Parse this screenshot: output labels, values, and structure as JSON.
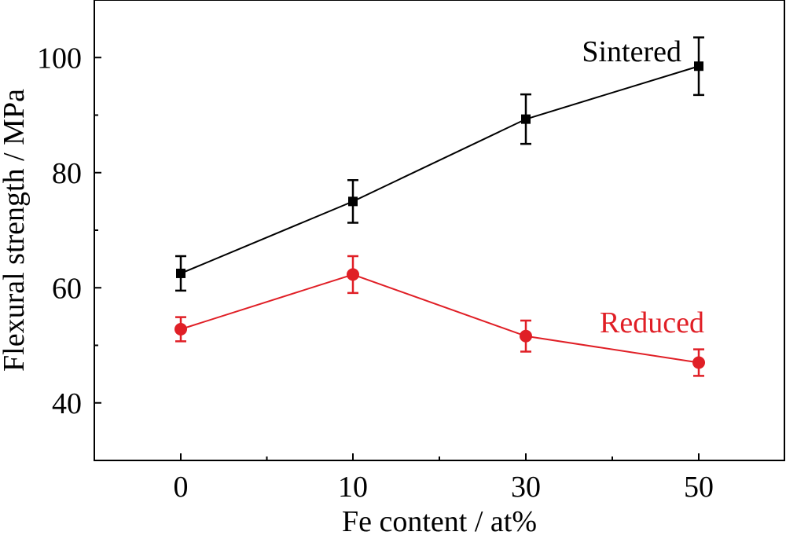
{
  "chart_data": {
    "type": "line",
    "title": "",
    "xlabel": "Fe content / at%",
    "ylabel": "Flexural strength / MPa",
    "categories": [
      "0",
      "10",
      "30",
      "50"
    ],
    "ylim": [
      30,
      110
    ],
    "yticks": [
      40,
      60,
      80,
      100
    ],
    "grid": false,
    "series": [
      {
        "name": "Sintered",
        "color": "#000000",
        "marker": "square",
        "values": [
          62.5,
          75.0,
          89.3,
          98.5
        ],
        "errors": [
          3.0,
          3.7,
          4.3,
          5.0
        ]
      },
      {
        "name": "Reduced",
        "color": "#e01f26",
        "marker": "circle",
        "values": [
          52.8,
          62.3,
          51.6,
          47.0
        ],
        "errors": [
          2.1,
          3.2,
          2.7,
          2.3
        ]
      }
    ]
  }
}
